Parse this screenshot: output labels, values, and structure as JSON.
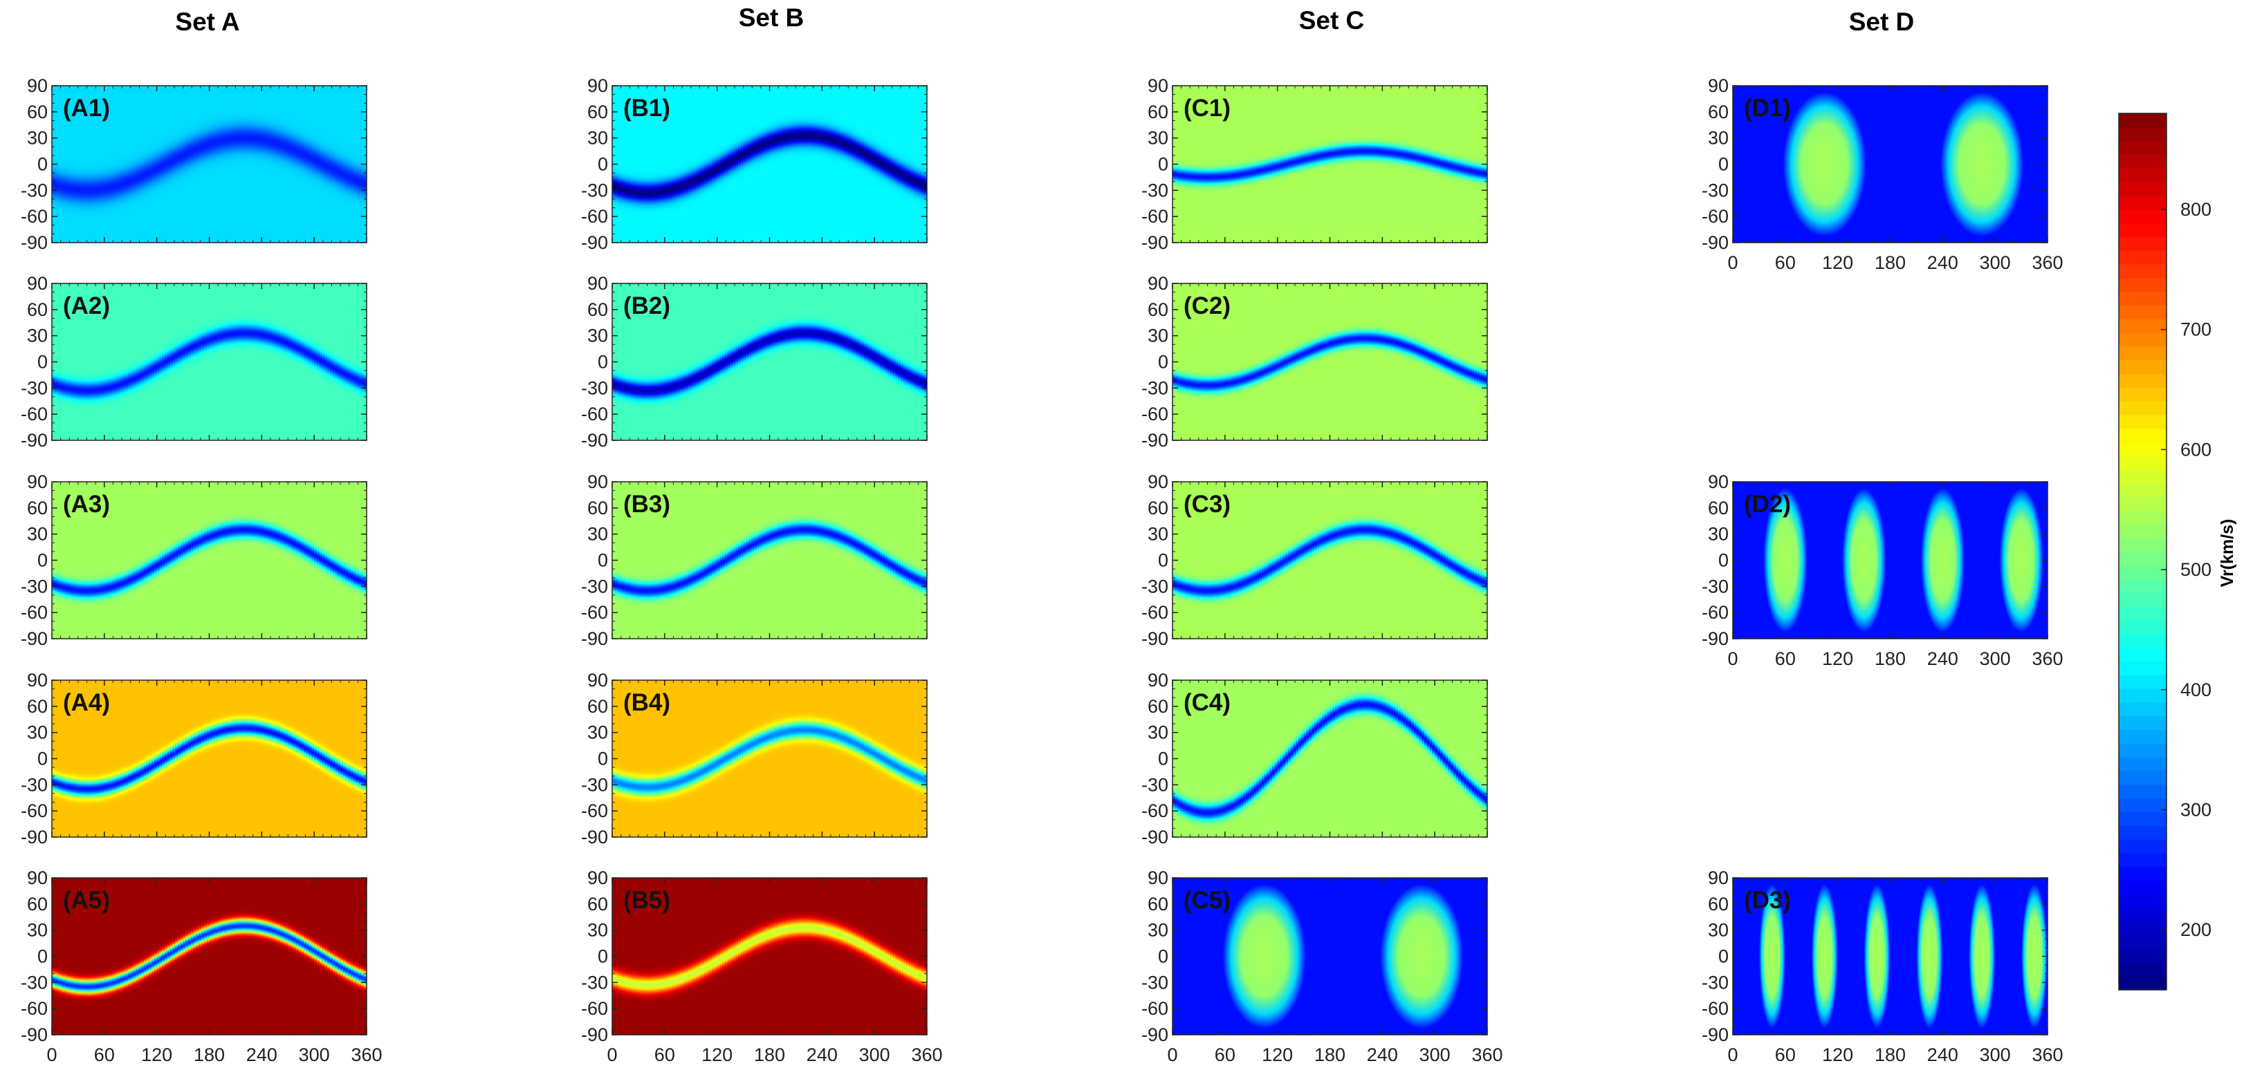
{
  "chart_data": {
    "type": "heatmap",
    "colorbar": {
      "label": "Vr(km/s)",
      "range": [
        150,
        880
      ],
      "ticks": [
        200,
        300,
        400,
        500,
        600,
        700,
        800
      ],
      "colormap": "jet"
    },
    "axes": {
      "x": {
        "label": "",
        "range": [
          0,
          360
        ],
        "ticks": [
          0,
          60,
          120,
          180,
          240,
          300,
          360
        ]
      },
      "y": {
        "label": "",
        "range": [
          -90,
          90
        ],
        "ticks": [
          90,
          60,
          30,
          0,
          -30,
          -60,
          -90
        ]
      }
    },
    "sets": [
      {
        "title": "Set A",
        "panels": [
          {
            "label": "(A1)",
            "pattern": "sheet",
            "slow_kms": 260,
            "fast_kms": 400,
            "amplitude_deg": 30,
            "band_width_deg": 20,
            "phase_deg": 220
          },
          {
            "label": "(A2)",
            "pattern": "sheet",
            "slow_kms": 250,
            "fast_kms": 470,
            "amplitude_deg": 33,
            "band_width_deg": 13,
            "phase_deg": 220
          },
          {
            "label": "(A3)",
            "pattern": "sheet",
            "slow_kms": 250,
            "fast_kms": 540,
            "amplitude_deg": 35,
            "band_width_deg": 12,
            "phase_deg": 220
          },
          {
            "label": "(A4)",
            "pattern": "sheet",
            "slow_kms": 250,
            "fast_kms": 650,
            "amplitude_deg": 35,
            "band_width_deg": 12,
            "phase_deg": 220
          },
          {
            "label": "(A5)",
            "pattern": "sheet",
            "slow_kms": 270,
            "fast_kms": 860,
            "amplitude_deg": 35,
            "band_width_deg": 11,
            "phase_deg": 220
          }
        ]
      },
      {
        "title": "Set B",
        "panels": [
          {
            "label": "(B1)",
            "pattern": "sheet",
            "slow_kms": 150,
            "fast_kms": 420,
            "amplitude_deg": 33,
            "band_width_deg": 15,
            "phase_deg": 220
          },
          {
            "label": "(B2)",
            "pattern": "sheet",
            "slow_kms": 190,
            "fast_kms": 470,
            "amplitude_deg": 33,
            "band_width_deg": 13,
            "phase_deg": 220
          },
          {
            "label": "(B3)",
            "pattern": "sheet",
            "slow_kms": 250,
            "fast_kms": 540,
            "amplitude_deg": 35,
            "band_width_deg": 12,
            "phase_deg": 220
          },
          {
            "label": "(B4)",
            "pattern": "sheet",
            "slow_kms": 330,
            "fast_kms": 650,
            "amplitude_deg": 33,
            "band_width_deg": 13,
            "phase_deg": 220
          },
          {
            "label": "(B5)",
            "pattern": "sheet",
            "slow_kms": 560,
            "fast_kms": 860,
            "amplitude_deg": 33,
            "band_width_deg": 13,
            "phase_deg": 220
          }
        ]
      },
      {
        "title": "Set C",
        "panels": [
          {
            "label": "(C1)",
            "pattern": "sheet",
            "slow_kms": 250,
            "fast_kms": 545,
            "amplitude_deg": 15,
            "band_width_deg": 11,
            "phase_deg": 220
          },
          {
            "label": "(C2)",
            "pattern": "sheet",
            "slow_kms": 250,
            "fast_kms": 545,
            "amplitude_deg": 27,
            "band_width_deg": 11,
            "phase_deg": 220
          },
          {
            "label": "(C3)",
            "pattern": "sheet",
            "slow_kms": 250,
            "fast_kms": 545,
            "amplitude_deg": 35,
            "band_width_deg": 12,
            "phase_deg": 220
          },
          {
            "label": "(C4)",
            "pattern": "sheet",
            "slow_kms": 250,
            "fast_kms": 540,
            "amplitude_deg": 62,
            "band_width_deg": 12,
            "phase_deg": 220
          },
          {
            "label": "(C5)",
            "pattern": "cells",
            "slow_kms": 250,
            "fast_kms": 545,
            "lobes": 2,
            "lobe_width_deg": 95
          }
        ]
      },
      {
        "title": "Set D",
        "panels": [
          {
            "label": "(D1)",
            "pattern": "cells",
            "slow_kms": 250,
            "fast_kms": 545,
            "lobes": 2,
            "lobe_width_deg": 95
          },
          {
            "label": "(D2)",
            "pattern": "cells",
            "slow_kms": 250,
            "fast_kms": 545,
            "lobes": 4,
            "lobe_width_deg": 50
          },
          {
            "label": "(D3)",
            "pattern": "cells",
            "slow_kms": 250,
            "fast_kms": 545,
            "lobes": 6,
            "lobe_width_deg": 30
          }
        ]
      }
    ]
  }
}
